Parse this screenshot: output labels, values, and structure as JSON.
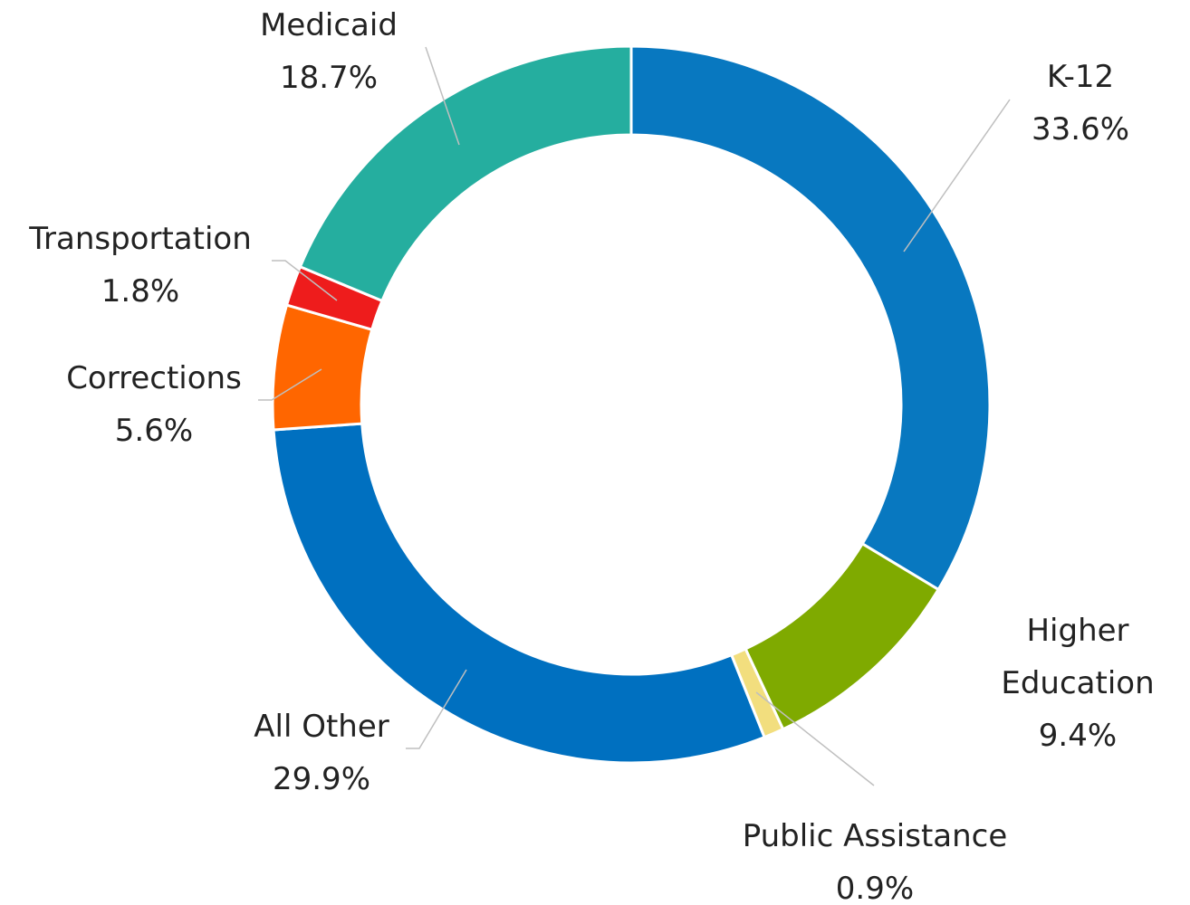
{
  "chart_data": {
    "type": "donut",
    "categories": [
      "K-12",
      "Higher Education",
      "Public Assistance",
      "All Other",
      "Corrections",
      "Transportation",
      "Medicaid"
    ],
    "values": [
      33.6,
      9.4,
      0.9,
      29.9,
      5.6,
      1.8,
      18.7
    ],
    "value_labels": [
      "33.6%",
      "9.4%",
      "0.9%",
      "29.9%",
      "5.6%",
      "1.8%",
      "18.7%"
    ],
    "colors": [
      "#0878c0",
      "#7faa00",
      "#f2de7e",
      "#0070c0",
      "#ff6600",
      "#ee1c1c",
      "#25ae9f"
    ]
  }
}
